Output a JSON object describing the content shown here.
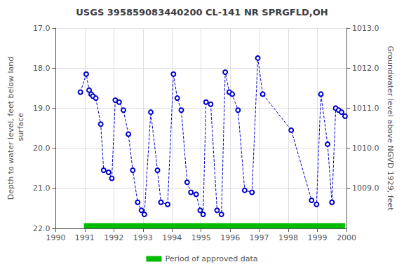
{
  "chart_data": {
    "type": "line",
    "title": "USGS 395859083440200 CL-141 NR SPRGFLD,OH",
    "x_label": null,
    "y_label": "Depth to water level, feet below land\n surface",
    "y2_label": "Groundwater level above NGVD 1929, feet",
    "x": [
      1990.85,
      1991.05,
      1991.15,
      1991.22,
      1991.28,
      1991.38,
      1991.55,
      1991.65,
      1991.82,
      1991.93,
      1992.05,
      1992.18,
      1992.33,
      1992.5,
      1992.65,
      1992.82,
      1992.95,
      1993.05,
      1993.27,
      1993.5,
      1993.62,
      1993.85,
      1994.05,
      1994.18,
      1994.32,
      1994.52,
      1994.65,
      1994.83,
      1994.97,
      1995.07,
      1995.17,
      1995.33,
      1995.55,
      1995.7,
      1995.83,
      1995.97,
      1996.07,
      1996.27,
      1996.5,
      1996.75,
      1996.95,
      1997.12,
      1998.1,
      1998.8,
      1998.97,
      1999.12,
      1999.35,
      1999.5,
      1999.63,
      1999.73,
      1999.83,
      1999.95
    ],
    "series": [
      {
        "color": "#0000cc",
        "line_style": "dashed",
        "marker": "circle",
        "values": [
          18.6,
          18.15,
          18.55,
          18.65,
          18.7,
          18.75,
          19.4,
          20.55,
          20.6,
          20.75,
          18.8,
          18.85,
          19.05,
          19.65,
          20.55,
          21.35,
          21.55,
          21.65,
          19.1,
          20.55,
          21.35,
          21.4,
          18.15,
          18.75,
          19.05,
          20.85,
          21.1,
          21.15,
          21.55,
          21.65,
          18.85,
          18.9,
          21.55,
          21.65,
          18.1,
          18.6,
          18.65,
          19.05,
          21.05,
          21.1,
          17.75,
          18.65,
          19.55,
          21.3,
          21.4,
          18.65,
          19.9,
          21.35,
          19.0,
          19.05,
          19.1,
          19.2
        ]
      },
      {
        "name": "Period of approved data",
        "type": "span",
        "color": "#00bb00",
        "x": [
          1990.97,
          1999.95
        ],
        "y": [
          21.87,
          22.0
        ]
      }
    ],
    "xlim": [
      1990,
      2000
    ],
    "xticks": [
      1990,
      1991,
      1992,
      1993,
      1994,
      1995,
      1996,
      1997,
      1998,
      1999,
      2000
    ],
    "ylim": [
      22.0,
      17.0
    ],
    "yticks": [
      {
        "value": 17.0,
        "label": "17.0"
      },
      {
        "value": 18.0,
        "label": "18.0"
      },
      {
        "value": 19.0,
        "label": "19.0"
      },
      {
        "value": 20.0,
        "label": "20.0"
      },
      {
        "value": 21.0,
        "label": "21.0"
      },
      {
        "value": 22.0,
        "label": "22.0"
      }
    ],
    "y2lim": [
      1008.0,
      1013.0
    ],
    "y2ticks": [
      {
        "value": 1009.0,
        "label": "1009.0"
      },
      {
        "value": 1010.0,
        "label": "1010.0"
      },
      {
        "value": 1011.0,
        "label": "1011.0"
      },
      {
        "value": 1012.0,
        "label": "1012.0"
      },
      {
        "value": 1013.0,
        "label": "1013.0"
      }
    ],
    "grid": true,
    "legend": "bottom"
  }
}
